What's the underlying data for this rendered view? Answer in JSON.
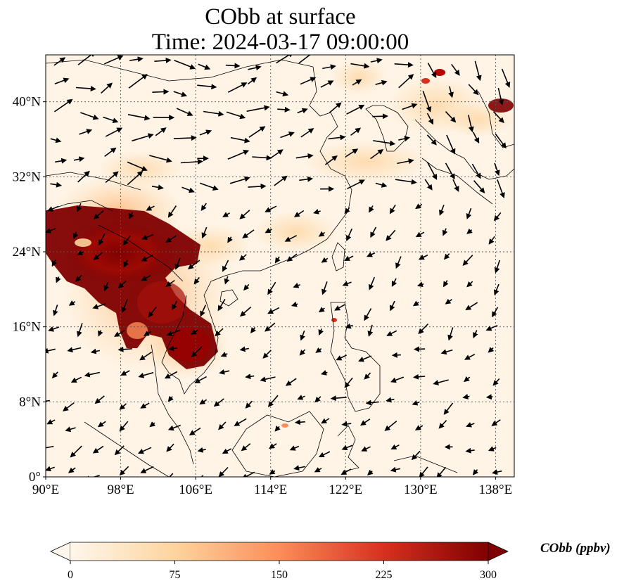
{
  "title_line1": "CObb at surface",
  "title_line2": "Time: 2024-03-17 09:00:00",
  "map": {
    "lon_range": [
      90,
      140
    ],
    "lat_range": [
      0,
      45
    ],
    "lon_ticks": [
      "90°E",
      "98°E",
      "106°E",
      "114°E",
      "122°E",
      "130°E",
      "138°E"
    ],
    "lon_tick_values": [
      90,
      98,
      106,
      114,
      122,
      130,
      138
    ],
    "lat_ticks": [
      "0°",
      "8°N",
      "16°N",
      "24°N",
      "32°N",
      "40°N"
    ],
    "lat_tick_values": [
      0,
      8,
      16,
      24,
      32,
      40
    ],
    "gridlines": "dotted",
    "colormap": "OrRd",
    "background_color": "#fff4e6"
  },
  "colorbar": {
    "label": "CObb (ppbv)",
    "min": 0,
    "max": 300,
    "ticks": [
      "0",
      "75",
      "150",
      "225",
      "300"
    ],
    "tick_values": [
      0,
      75,
      150,
      225,
      300
    ],
    "colors": [
      "#fff7ec",
      "#fdd49e",
      "#fc8d59",
      "#d7301f",
      "#7f0000"
    ],
    "extend": "both"
  }
}
